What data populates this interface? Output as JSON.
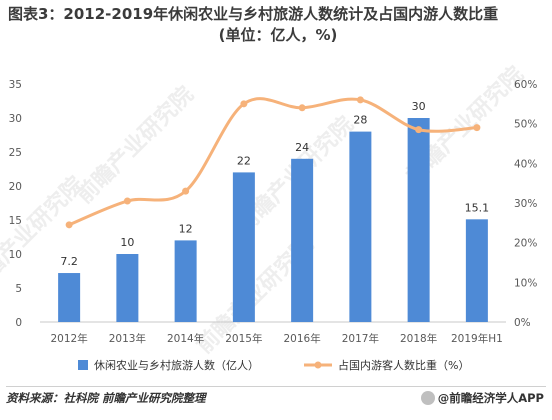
{
  "title_line1": "图表3：2012-2019年休闲农业与乡村旅游人数统计及占国内游人数比重",
  "title_line2": "(单位：亿人，%)",
  "watermark": "前瞻产业研究院",
  "source": "资料来源：社科院 前瞻产业研究院整理",
  "brand": "@前瞻经济学人APP",
  "colors": {
    "bar": "#4e8ad6",
    "line": "#f6b27a",
    "axis_text": "#595959",
    "grid": "#e0e0e0"
  },
  "chart_data": {
    "type": "bar",
    "categories": [
      "2012年",
      "2013年",
      "2014年",
      "2015年",
      "2016年",
      "2017年",
      "2018年",
      "2019年H1"
    ],
    "series": [
      {
        "name": "休闲农业与乡村旅游人数（亿人）",
        "type": "bar",
        "axis": "left",
        "values": [
          7.2,
          10,
          12,
          22,
          24,
          28,
          30,
          15.1
        ],
        "labels": [
          "7.2",
          "10",
          "12",
          "22",
          "24",
          "28",
          "30",
          "15.1"
        ]
      },
      {
        "name": "占国内游客人数比重（%）",
        "type": "line",
        "axis": "right",
        "values": [
          24.5,
          30.5,
          33,
          55,
          54,
          56,
          48.5,
          49
        ]
      }
    ],
    "y_left": {
      "min": 0,
      "max": 35,
      "ticks": [
        "0",
        "5",
        "10",
        "15",
        "20",
        "25",
        "30",
        "35"
      ]
    },
    "y_right": {
      "min": 0,
      "max": 60,
      "ticks": [
        "0%",
        "10%",
        "20%",
        "30%",
        "40%",
        "50%",
        "60%"
      ]
    },
    "legend_position": "bottom"
  }
}
